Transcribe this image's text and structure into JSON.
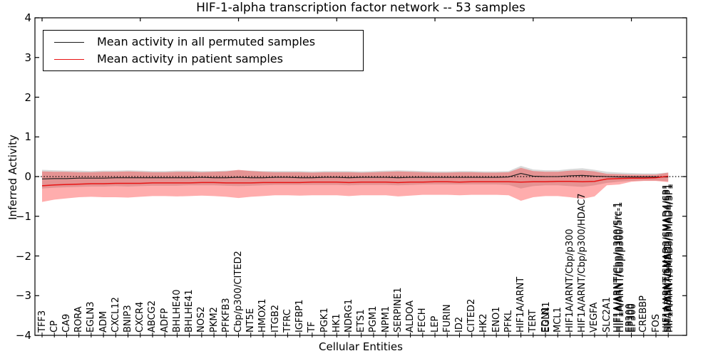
{
  "chart_data": {
    "type": "line",
    "title": "HIF-1-alpha transcription factor network -- 53 samples",
    "xlabel": "Cellular Entities",
    "ylabel": "Inferred Activity",
    "ylim": [
      -4,
      4
    ],
    "yticks": [
      4,
      3,
      2,
      1,
      0,
      -1,
      -2,
      -3,
      -4
    ],
    "zero_reference_line": {
      "style": "dotted",
      "color": "#000000",
      "y": 0
    },
    "legend_position": "upper left",
    "grid": false,
    "categories": [
      "TFF3",
      "CP",
      "CA9",
      "RORA",
      "EGLN3",
      "ADM",
      "CXCL12",
      "BNIP3",
      "CXCR4",
      "ABCG2",
      "ADFP",
      "BHLHE40",
      "BHLHE41",
      "NOS2",
      "PKM2",
      "PFKFB3",
      "Cbp/p300/CITED2",
      "NT5E",
      "HMOX1",
      "ITGB2",
      "TFRC",
      "IGFBP1",
      "TF",
      "PGK1",
      "HK1",
      "NDRG1",
      "ETS1",
      "PGM1",
      "NPM1",
      "SERPINE1",
      "ALDOA",
      "FECH",
      "LEP",
      "FURIN",
      "ID2",
      "CITED2",
      "HK2",
      "ENO1",
      "PFKL",
      "HIF1A/ARNT",
      "TERT",
      "EDN1",
      "MCL1",
      "HIF1A/ARNT/Cbp/p300",
      "HIF1A/ARNT/Cbp/p300/HDAC7",
      "VEGFA",
      "SLC2A1",
      "HIF1A/ARNT/Cbp/p300/Src-1",
      "EP300",
      "CREBBP",
      "FOS",
      "HIF1A/ARNT/SMAD3/SMAD4/SP1"
    ],
    "overlap_labels": [
      {
        "index": 41,
        "label": "EGLN1",
        "dx": 1
      },
      {
        "index": 47,
        "label": "HIF1A/ARNT/Cbp/p300/Src-1",
        "dx": -2
      },
      {
        "index": 47,
        "label": "HIF1A/ARNT/Cbp/p300",
        "dx": 2
      },
      {
        "index": 48,
        "label": "EP300",
        "dx": -2
      },
      {
        "index": 48,
        "label": "EP300",
        "dx": 2
      },
      {
        "index": 51,
        "label": "HIF1A/ARNT/SMAD3/SMAD4/SP1",
        "dx": -2
      },
      {
        "index": 51,
        "label": "HIF1A/ARNT/SMAD3/SMAD4/SP1",
        "dx": 2
      },
      {
        "index": 51,
        "label": "SMAD3/SMAD4/SP1",
        "dx": 0
      }
    ],
    "series": [
      {
        "name": "Mean activity in all permuted samples",
        "color": "#1a1a1a",
        "line_width": 1.1,
        "values": [
          -0.06,
          -0.05,
          -0.05,
          -0.04,
          -0.04,
          -0.04,
          -0.03,
          -0.03,
          -0.03,
          -0.03,
          -0.03,
          -0.03,
          -0.03,
          -0.02,
          -0.03,
          -0.03,
          -0.02,
          -0.03,
          -0.03,
          -0.02,
          -0.02,
          -0.03,
          -0.03,
          -0.02,
          -0.02,
          -0.03,
          -0.02,
          -0.02,
          -0.02,
          -0.03,
          -0.02,
          -0.02,
          -0.02,
          -0.02,
          -0.02,
          -0.02,
          -0.02,
          -0.02,
          -0.01,
          0.08,
          0.01,
          0.0,
          0.0,
          0.02,
          0.03,
          0.01,
          0.0,
          -0.01,
          -0.01,
          -0.01,
          -0.01,
          -0.01
        ],
        "band": {
          "color": "#000000",
          "opacity": 0.15,
          "upper": [
            0.17,
            0.16,
            0.15,
            0.15,
            0.14,
            0.15,
            0.15,
            0.16,
            0.15,
            0.14,
            0.14,
            0.15,
            0.15,
            0.14,
            0.14,
            0.15,
            0.16,
            0.15,
            0.14,
            0.14,
            0.14,
            0.14,
            0.13,
            0.14,
            0.14,
            0.14,
            0.13,
            0.14,
            0.15,
            0.16,
            0.15,
            0.14,
            0.13,
            0.13,
            0.14,
            0.14,
            0.13,
            0.13,
            0.14,
            0.27,
            0.18,
            0.16,
            0.16,
            0.19,
            0.21,
            0.17,
            0.12,
            0.1,
            0.09,
            0.08,
            0.08,
            0.1
          ],
          "lower": [
            -0.3,
            -0.28,
            -0.27,
            -0.26,
            -0.25,
            -0.25,
            -0.24,
            -0.25,
            -0.24,
            -0.23,
            -0.23,
            -0.23,
            -0.22,
            -0.22,
            -0.22,
            -0.23,
            -0.24,
            -0.23,
            -0.22,
            -0.21,
            -0.21,
            -0.21,
            -0.21,
            -0.21,
            -0.21,
            -0.22,
            -0.21,
            -0.21,
            -0.21,
            -0.22,
            -0.21,
            -0.2,
            -0.2,
            -0.2,
            -0.2,
            -0.2,
            -0.2,
            -0.2,
            -0.21,
            -0.3,
            -0.24,
            -0.22,
            -0.22,
            -0.24,
            -0.26,
            -0.22,
            -0.16,
            -0.13,
            -0.11,
            -0.1,
            -0.1,
            -0.12
          ]
        }
      },
      {
        "name": "Mean activity in patient samples",
        "color": "#e81414",
        "line_width": 1.5,
        "values": [
          -0.23,
          -0.21,
          -0.2,
          -0.19,
          -0.18,
          -0.18,
          -0.17,
          -0.17,
          -0.17,
          -0.16,
          -0.16,
          -0.16,
          -0.16,
          -0.15,
          -0.15,
          -0.16,
          -0.16,
          -0.16,
          -0.15,
          -0.15,
          -0.15,
          -0.15,
          -0.14,
          -0.14,
          -0.14,
          -0.15,
          -0.14,
          -0.14,
          -0.14,
          -0.15,
          -0.14,
          -0.14,
          -0.13,
          -0.13,
          -0.14,
          -0.13,
          -0.13,
          -0.13,
          -0.13,
          -0.14,
          -0.13,
          -0.13,
          -0.12,
          -0.12,
          -0.13,
          -0.12,
          -0.06,
          -0.05,
          -0.04,
          -0.04,
          -0.03,
          0.01
        ],
        "band": {
          "color": "#ff0000",
          "opacity": 0.32,
          "upper": [
            0.13,
            0.12,
            0.12,
            0.11,
            0.11,
            0.12,
            0.12,
            0.13,
            0.12,
            0.11,
            0.11,
            0.12,
            0.12,
            0.11,
            0.12,
            0.13,
            0.17,
            0.14,
            0.12,
            0.11,
            0.11,
            0.11,
            0.1,
            0.11,
            0.11,
            0.11,
            0.1,
            0.11,
            0.12,
            0.13,
            0.12,
            0.11,
            0.1,
            0.1,
            0.11,
            0.11,
            0.1,
            0.1,
            0.11,
            0.22,
            0.14,
            0.12,
            0.12,
            0.15,
            0.16,
            0.13,
            0.07,
            0.06,
            0.05,
            0.05,
            0.05,
            0.1
          ],
          "lower": [
            -0.64,
            -0.58,
            -0.55,
            -0.52,
            -0.51,
            -0.52,
            -0.52,
            -0.53,
            -0.51,
            -0.49,
            -0.49,
            -0.5,
            -0.49,
            -0.48,
            -0.49,
            -0.51,
            -0.54,
            -0.51,
            -0.49,
            -0.47,
            -0.47,
            -0.48,
            -0.47,
            -0.47,
            -0.47,
            -0.49,
            -0.47,
            -0.47,
            -0.47,
            -0.5,
            -0.48,
            -0.46,
            -0.46,
            -0.46,
            -0.47,
            -0.46,
            -0.46,
            -0.46,
            -0.47,
            -0.61,
            -0.52,
            -0.49,
            -0.49,
            -0.52,
            -0.56,
            -0.5,
            -0.22,
            -0.2,
            -0.13,
            -0.11,
            -0.11,
            -0.14
          ]
        }
      }
    ],
    "layout_hints": {
      "x_major_tick_indices": [
        0,
        8,
        16,
        24,
        32,
        40,
        48
      ]
    }
  }
}
